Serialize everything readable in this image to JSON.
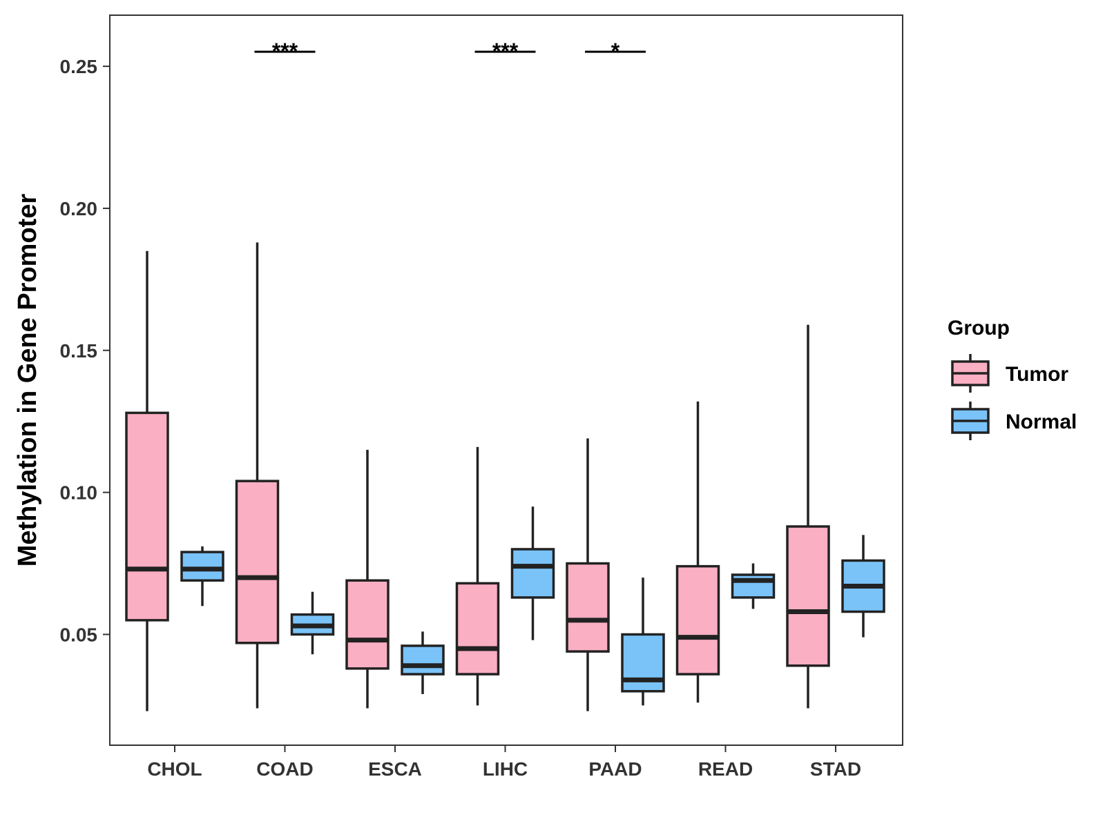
{
  "chart_data": {
    "type": "boxplot",
    "title": "",
    "xlabel": "",
    "ylabel": "Methylation in Gene Promoter",
    "ylim": [
      0.011,
      0.268
    ],
    "yticks": [
      0.05,
      0.1,
      0.15,
      0.2,
      0.25
    ],
    "ytick_labels": [
      "0.05",
      "0.10",
      "0.15",
      "0.20",
      "0.25"
    ],
    "categories": [
      "CHOL",
      "COAD",
      "ESCA",
      "LIHC",
      "PAAD",
      "READ",
      "STAD"
    ],
    "legend": {
      "title": "Group",
      "position": "right",
      "entries": [
        {
          "name": "Tumor",
          "color": "#FBAFC3"
        },
        {
          "name": "Normal",
          "color": "#7AC3F8"
        }
      ]
    },
    "series": [
      {
        "name": "Tumor",
        "color": "#FBAFC3",
        "boxes": [
          {
            "category": "CHOL",
            "min": 0.023,
            "q1": 0.055,
            "median": 0.073,
            "q3": 0.128,
            "max": 0.185
          },
          {
            "category": "COAD",
            "min": 0.024,
            "q1": 0.047,
            "median": 0.07,
            "q3": 0.104,
            "max": 0.188
          },
          {
            "category": "ESCA",
            "min": 0.024,
            "q1": 0.038,
            "median": 0.048,
            "q3": 0.069,
            "max": 0.115
          },
          {
            "category": "LIHC",
            "min": 0.025,
            "q1": 0.036,
            "median": 0.045,
            "q3": 0.068,
            "max": 0.116
          },
          {
            "category": "PAAD",
            "min": 0.023,
            "q1": 0.044,
            "median": 0.055,
            "q3": 0.075,
            "max": 0.119
          },
          {
            "category": "READ",
            "min": 0.026,
            "q1": 0.036,
            "median": 0.049,
            "q3": 0.074,
            "max": 0.132
          },
          {
            "category": "STAD",
            "min": 0.024,
            "q1": 0.039,
            "median": 0.058,
            "q3": 0.088,
            "max": 0.159
          }
        ]
      },
      {
        "name": "Normal",
        "color": "#7AC3F8",
        "boxes": [
          {
            "category": "CHOL",
            "min": 0.06,
            "q1": 0.069,
            "median": 0.073,
            "q3": 0.079,
            "max": 0.081
          },
          {
            "category": "COAD",
            "min": 0.043,
            "q1": 0.05,
            "median": 0.053,
            "q3": 0.057,
            "max": 0.065
          },
          {
            "category": "ESCA",
            "min": 0.029,
            "q1": 0.036,
            "median": 0.039,
            "q3": 0.046,
            "max": 0.051
          },
          {
            "category": "LIHC",
            "min": 0.048,
            "q1": 0.063,
            "median": 0.074,
            "q3": 0.08,
            "max": 0.095
          },
          {
            "category": "PAAD",
            "min": 0.025,
            "q1": 0.03,
            "median": 0.034,
            "q3": 0.05,
            "max": 0.07
          },
          {
            "category": "READ",
            "min": 0.059,
            "q1": 0.063,
            "median": 0.069,
            "q3": 0.071,
            "max": 0.075
          },
          {
            "category": "STAD",
            "min": 0.049,
            "q1": 0.058,
            "median": 0.067,
            "q3": 0.076,
            "max": 0.085
          }
        ]
      }
    ],
    "significance": [
      {
        "category": "COAD",
        "label": "***"
      },
      {
        "category": "LIHC",
        "label": "***"
      },
      {
        "category": "PAAD",
        "label": "*"
      }
    ]
  }
}
